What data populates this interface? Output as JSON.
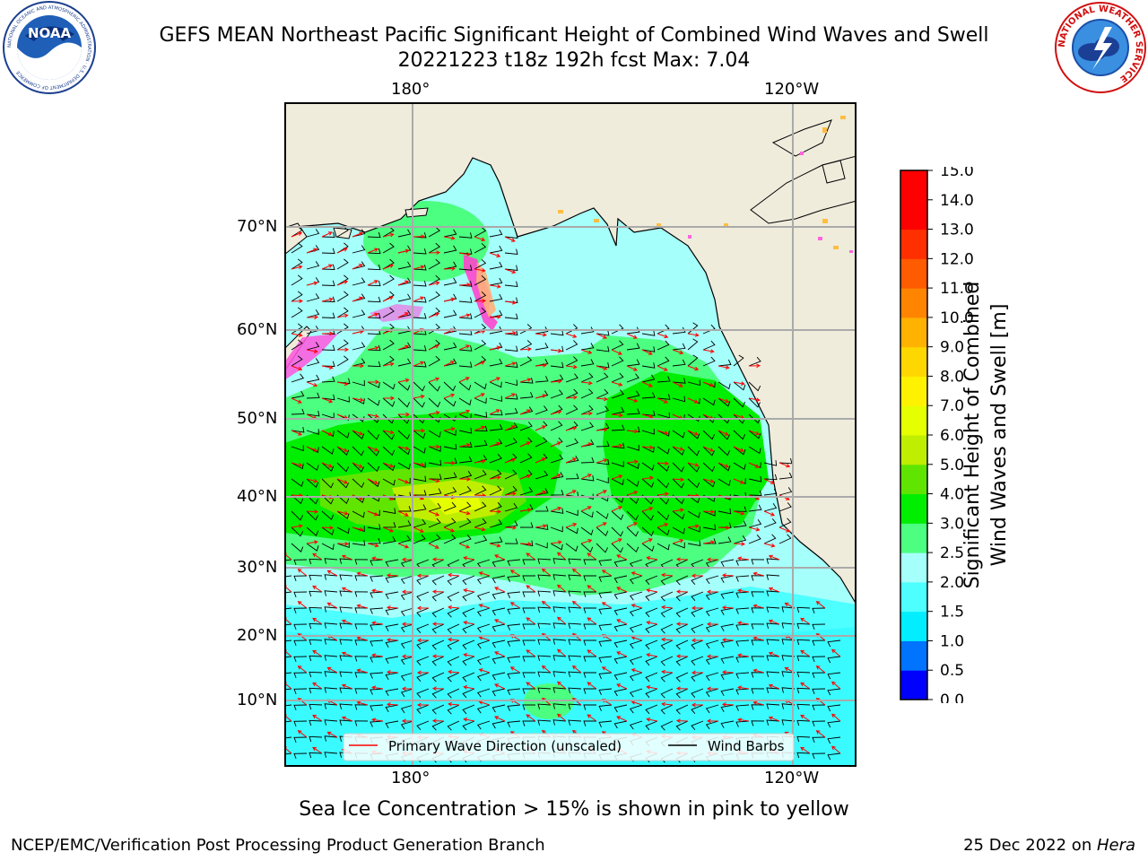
{
  "header": {
    "title_line1": "GEFS MEAN Northeast Pacific Significant Height of Combined Wind Waves and Swell",
    "title_line2": "20221223 t18z 192h fcst   Max: 7.04"
  },
  "logos": {
    "noaa_text": "NOAA",
    "noaa_ring_text": "NATIONAL OCEANIC AND ATMOSPHERIC ADMINISTRATION · U.S. DEPARTMENT OF COMMERCE",
    "nws_ring_text": "NATIONAL WEATHER SERVICE"
  },
  "map": {
    "lon_labels": [
      "180°",
      "120°W"
    ],
    "lat_labels": [
      "70°N",
      "60°N",
      "50°N",
      "40°N",
      "30°N",
      "20°N",
      "10°N"
    ],
    "legend": {
      "wave_label": "Primary Wave Direction (unscaled)",
      "wind_label": "Wind Barbs",
      "wave_color": "#ff0000",
      "wind_color": "#000000"
    },
    "land_color": "#efecdc",
    "max_value": 7.04,
    "units": "m"
  },
  "colorbar": {
    "title_line1": "Significant Height of Combined",
    "title_line2": "Wind Waves and Swell [m]",
    "ticks": [
      "0.0",
      "0.5",
      "1.0",
      "1.5",
      "2.0",
      "2.5",
      "3.0",
      "4.0",
      "5.0",
      "6.0",
      "7.0",
      "8.0",
      "9.0",
      "10.0",
      "11.0",
      "12.0",
      "13.0",
      "14.0",
      "15.0"
    ],
    "colors": [
      "#0000ff",
      "#0073ff",
      "#00eeff",
      "#4dffff",
      "#a5fffb",
      "#4cff80",
      "#00ee00",
      "#60e500",
      "#c0ee00",
      "#e5ff00",
      "#fff200",
      "#ffd700",
      "#ffb200",
      "#ff8500",
      "#ff5b00",
      "#ff2f00",
      "#ff0000",
      "#ff0000"
    ]
  },
  "footnote": "Sea Ice Concentration > 15% is shown in pink to yellow",
  "credits": {
    "left": "NCEP/EMC/Verification Post Processing Product Generation Branch",
    "right_date": "25 Dec 2022 on ",
    "right_machine": "Hera"
  }
}
